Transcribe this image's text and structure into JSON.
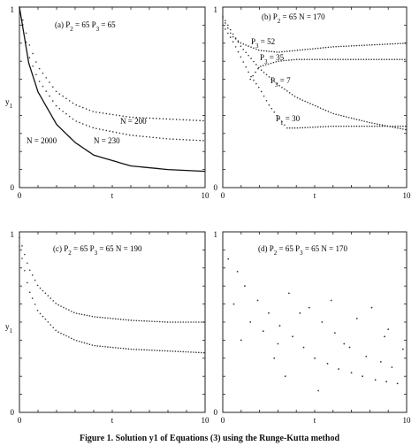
{
  "caption": "Figure 1. Solution y1 of Equations (3) using the Runge-Kutta method",
  "chart_data": [
    {
      "type": "line",
      "title": "(a) P2 = 65   P3 = 65",
      "title_parts": [
        "(a) P",
        "2",
        " = 65   P",
        "3",
        " = 65"
      ],
      "xlabel": "t",
      "ylabel": "y1",
      "ylabel_parts": [
        "y",
        "1"
      ],
      "xlim": [
        0,
        10
      ],
      "ylim": [
        0,
        1
      ],
      "xticks": [
        "0",
        "t",
        "10"
      ],
      "yticks": [
        "0",
        "1"
      ],
      "series": [
        {
          "name": "N = 200",
          "style": "dotted",
          "x": [
            0,
            0.5,
            1,
            2,
            3,
            4,
            6,
            8,
            10
          ],
          "y": [
            1.0,
            0.8,
            0.67,
            0.53,
            0.46,
            0.42,
            0.39,
            0.38,
            0.37
          ]
        },
        {
          "name": "N = 230",
          "style": "dotted",
          "x": [
            0,
            0.5,
            1,
            2,
            3,
            4,
            6,
            8,
            10
          ],
          "y": [
            1.0,
            0.73,
            0.6,
            0.45,
            0.37,
            0.33,
            0.29,
            0.27,
            0.26
          ]
        },
        {
          "name": "N = 2000",
          "style": "solid",
          "x": [
            0,
            0.5,
            1,
            2,
            3,
            4,
            6,
            8,
            10
          ],
          "y": [
            1.0,
            0.69,
            0.53,
            0.35,
            0.25,
            0.18,
            0.12,
            0.1,
            0.09
          ]
        }
      ],
      "annotations": [
        "N = 200",
        "N = 230",
        "N = 2000"
      ]
    },
    {
      "type": "scatter",
      "title": "(b) P2 = 65   N = 170",
      "title_parts": [
        "(b) P",
        "2",
        " = 65   N = 170"
      ],
      "xlabel": "t",
      "xlim": [
        0,
        10
      ],
      "ylim": [
        0,
        1
      ],
      "xticks": [
        "0",
        "t",
        "10"
      ],
      "yticks": [
        "0",
        "1"
      ],
      "series": [
        {
          "name": "P3 = 52",
          "label_parts": [
            "P",
            "3",
            " = 52"
          ],
          "x": [
            0,
            0.5,
            1,
            2,
            3,
            4,
            6,
            8,
            10
          ],
          "y": [
            0.94,
            0.84,
            0.8,
            0.76,
            0.75,
            0.76,
            0.78,
            0.79,
            0.8
          ]
        },
        {
          "name": "P3 = 35",
          "label_parts": [
            "P",
            "3",
            " = 35"
          ],
          "x": [
            1.5,
            2,
            3,
            4,
            6,
            8,
            10
          ],
          "y": [
            0.6,
            0.67,
            0.7,
            0.71,
            0.71,
            0.71,
            0.71
          ]
        },
        {
          "name": "P3 = 7",
          "label_parts": [
            "P",
            "3",
            " = 7"
          ],
          "x": [
            0,
            0.5,
            1,
            2,
            3,
            4,
            6,
            8,
            10
          ],
          "y": [
            0.95,
            0.86,
            0.78,
            0.66,
            0.57,
            0.5,
            0.41,
            0.36,
            0.32
          ]
        },
        {
          "name": "P1 = 30",
          "label_parts": [
            "P",
            "1",
            " = 30"
          ],
          "x": [
            0,
            0.5,
            1,
            1.5,
            2,
            2.5,
            3,
            3.5,
            4,
            6,
            8,
            10
          ],
          "y": [
            0.9,
            0.82,
            0.72,
            0.62,
            0.55,
            0.46,
            0.39,
            0.33,
            0.33,
            0.34,
            0.34,
            0.34
          ]
        }
      ]
    },
    {
      "type": "scatter",
      "title": "(c) P2 = 65   P3 = 65   N = 190",
      "title_parts": [
        "(c) P",
        "2",
        " = 65   P",
        "3",
        " = 65   N = 190"
      ],
      "xlabel": "t",
      "ylabel": "y1",
      "ylabel_parts": [
        "y",
        "1"
      ],
      "xlim": [
        0,
        10
      ],
      "ylim": [
        0,
        1
      ],
      "xticks": [
        "0",
        "t",
        "10"
      ],
      "yticks": [
        "0",
        "1"
      ],
      "series": [
        {
          "x": [
            0,
            0.5,
            1,
            2,
            3,
            4,
            6,
            8,
            10
          ],
          "y": [
            0.97,
            0.8,
            0.7,
            0.6,
            0.55,
            0.53,
            0.51,
            0.5,
            0.5
          ]
        },
        {
          "x": [
            0,
            0.5,
            1,
            2,
            3,
            4,
            6,
            8,
            10
          ],
          "y": [
            0.92,
            0.68,
            0.56,
            0.45,
            0.4,
            0.37,
            0.35,
            0.34,
            0.33
          ]
        }
      ]
    },
    {
      "type": "scatter",
      "title": "(d) P2 = 65   P3 = 65   N = 170",
      "title_parts": [
        "(d) P",
        "2",
        " = 65   P",
        "3",
        " = 65   N = 170"
      ],
      "xlabel": "t",
      "xlim": [
        0,
        10
      ],
      "ylim": [
        0,
        1
      ],
      "xticks": [
        "0",
        "t",
        "10"
      ],
      "yticks": [
        "0",
        "1"
      ],
      "series": [
        {
          "pattern": "scattered non-converging points",
          "x": [
            0.3,
            0.8,
            1.2,
            1.9,
            2.5,
            3.1,
            3.8,
            4.4,
            5.0,
            5.7,
            6.3,
            7.0,
            7.6,
            8.3,
            8.9,
            9.5,
            0.6,
            1.5,
            2.2,
            3.0,
            3.6,
            4.7,
            5.4,
            6.1,
            6.9,
            7.8,
            8.6,
            9.2,
            1.0,
            2.8,
            4.2,
            5.9,
            7.3,
            8.8,
            9.8,
            3.4,
            5.2,
            6.6,
            8.1,
            9.0
          ],
          "y": [
            0.85,
            0.78,
            0.7,
            0.62,
            0.55,
            0.48,
            0.42,
            0.36,
            0.3,
            0.27,
            0.24,
            0.22,
            0.2,
            0.18,
            0.17,
            0.16,
            0.6,
            0.5,
            0.45,
            0.38,
            0.66,
            0.58,
            0.5,
            0.44,
            0.36,
            0.31,
            0.28,
            0.25,
            0.4,
            0.3,
            0.55,
            0.62,
            0.52,
            0.42,
            0.35,
            0.2,
            0.12,
            0.38,
            0.58,
            0.46
          ]
        }
      ]
    }
  ]
}
